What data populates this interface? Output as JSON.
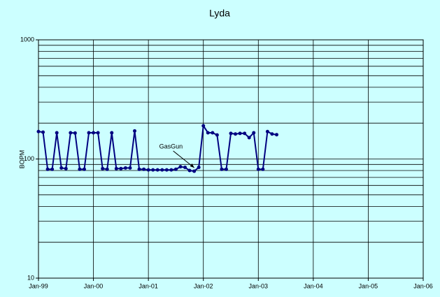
{
  "chart_data": {
    "type": "line",
    "title": "Lyda",
    "y_label": "BOPM",
    "x": [
      "1999-01",
      "1999-02",
      "1999-03",
      "1999-04",
      "1999-05",
      "1999-06",
      "1999-07",
      "1999-08",
      "1999-09",
      "1999-10",
      "1999-11",
      "1999-12",
      "2000-01",
      "2000-02",
      "2000-03",
      "2000-04",
      "2000-05",
      "2000-06",
      "2000-07",
      "2000-08",
      "2000-09",
      "2000-10",
      "2000-11",
      "2000-12",
      "2001-01",
      "2001-02",
      "2001-03",
      "2001-04",
      "2001-05",
      "2001-06",
      "2001-07",
      "2001-08",
      "2001-09",
      "2001-10",
      "2001-11",
      "2001-12",
      "2002-01",
      "2002-02",
      "2002-03",
      "2002-04",
      "2002-05",
      "2002-06",
      "2002-07",
      "2002-08",
      "2002-09",
      "2002-10",
      "2002-11",
      "2002-12",
      "2003-01",
      "2003-02",
      "2003-03",
      "2003-04",
      "2003-05"
    ],
    "series": [
      {
        "name": "BOPM",
        "color": "#000080",
        "values": [
          170,
          168,
          82,
          82,
          166,
          84,
          83,
          166,
          165,
          82,
          82,
          166,
          166,
          166,
          83,
          82,
          166,
          83,
          83,
          84,
          84,
          172,
          82,
          82,
          81,
          81,
          81,
          81,
          81,
          81,
          82,
          86,
          85,
          80,
          79,
          85,
          190,
          166,
          166,
          159,
          82,
          82,
          164,
          162,
          164,
          164,
          151,
          166,
          82,
          82,
          170,
          162,
          160
        ]
      }
    ],
    "xlim": [
      "1999-01",
      "2006-01"
    ],
    "xticks": [
      {
        "value": "1999-01",
        "label": "Jan-99"
      },
      {
        "value": "2000-01",
        "label": "Jan-00"
      },
      {
        "value": "2001-01",
        "label": "Jan-01"
      },
      {
        "value": "2002-01",
        "label": "Jan-02"
      },
      {
        "value": "2003-01",
        "label": "Jan-03"
      },
      {
        "value": "2004-01",
        "label": "Jan-04"
      },
      {
        "value": "2005-01",
        "label": "Jan-05"
      },
      {
        "value": "2006-01",
        "label": "Jan-06"
      }
    ],
    "ylim": [
      10,
      1000
    ],
    "yscale": "log",
    "yticks": [
      10,
      100,
      1000
    ],
    "yminorticks": [
      20,
      30,
      40,
      50,
      60,
      70,
      80,
      90,
      200,
      300,
      400,
      500,
      600,
      700,
      800,
      900
    ],
    "grid": true,
    "annotations": [
      {
        "text": "GasGun",
        "x": "2001-11",
        "y": 80
      }
    ]
  }
}
